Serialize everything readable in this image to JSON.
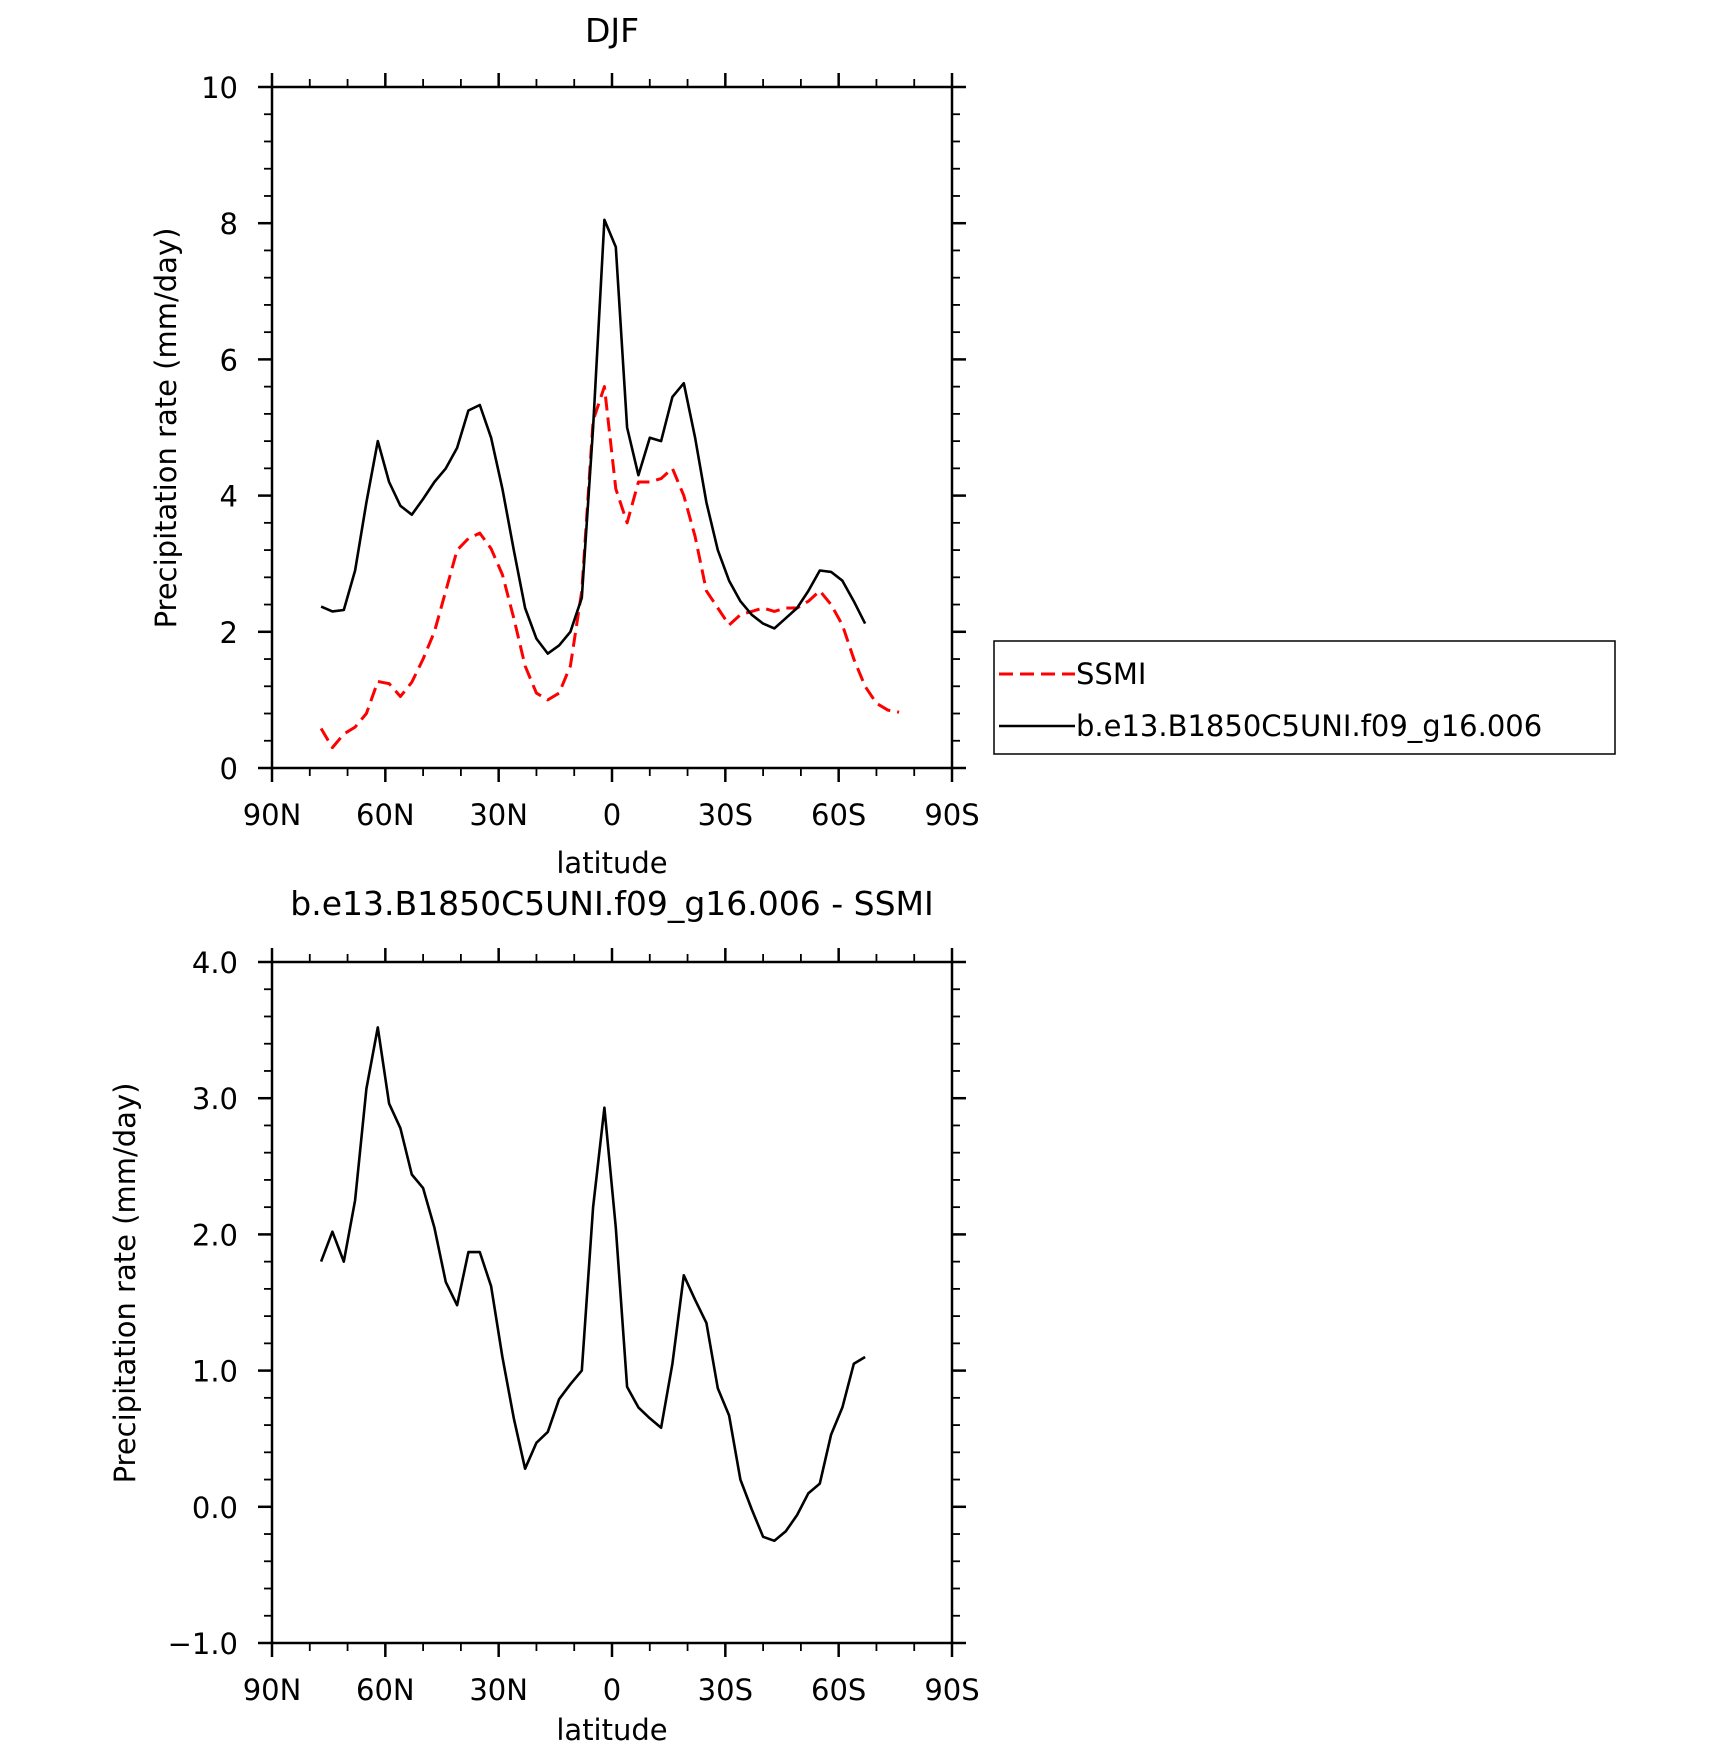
{
  "chart_data": [
    {
      "type": "line",
      "title": "DJF",
      "xlabel": "latitude",
      "ylabel": "Precipitation rate (mm/day)",
      "xlim": [
        90,
        -90
      ],
      "ylim": [
        0,
        10
      ],
      "x_ticks": [
        90,
        60,
        30,
        0,
        -30,
        -60,
        -90
      ],
      "x_tick_labels": [
        "90N",
        "60N",
        "30N",
        "0",
        "30S",
        "60S",
        "90S"
      ],
      "y_ticks": [
        0,
        2,
        4,
        6,
        8,
        10
      ],
      "y_tick_labels": [
        "0",
        "2",
        "4",
        "6",
        "8",
        "10"
      ],
      "grid": false,
      "legend_position": "right",
      "series": [
        {
          "name": "SSMI",
          "color": "#ff0000",
          "dash": "dashed",
          "x": [
            77,
            74,
            71,
            68,
            65,
            62,
            59,
            56,
            53,
            50,
            47,
            44,
            41,
            38,
            35,
            32,
            29,
            26,
            23,
            20,
            17,
            14,
            11,
            8,
            5,
            2,
            -1,
            -4,
            -7,
            -10,
            -13,
            -16,
            -19,
            -22,
            -25,
            -28,
            -31,
            -34,
            -37,
            -40,
            -43,
            -46,
            -49,
            -52,
            -55,
            -58,
            -61,
            -64,
            -67,
            -70,
            -73,
            -76
          ],
          "y": [
            0.58,
            0.3,
            0.5,
            0.6,
            0.8,
            1.27,
            1.24,
            1.05,
            1.26,
            1.6,
            2.0,
            2.6,
            3.2,
            3.37,
            3.45,
            3.22,
            2.84,
            2.2,
            1.5,
            1.1,
            1.0,
            1.1,
            1.5,
            2.6,
            5.1,
            5.6,
            4.1,
            3.6,
            4.2,
            4.2,
            4.25,
            4.4,
            4.0,
            3.4,
            2.6,
            2.35,
            2.1,
            2.25,
            2.3,
            2.35,
            2.3,
            2.35,
            2.35,
            2.45,
            2.6,
            2.4,
            2.1,
            1.6,
            1.2,
            0.95,
            0.85,
            0.82
          ]
        },
        {
          "name": "b.e13.B1850C5UNI.f09_g16.006",
          "color": "#000000",
          "dash": "solid",
          "x": [
            77,
            74,
            71,
            68,
            65,
            62,
            59,
            56,
            53,
            50,
            47,
            44,
            41,
            38,
            35,
            32,
            29,
            26,
            23,
            20,
            17,
            14,
            11,
            8,
            5,
            2,
            -1,
            -4,
            -7,
            -10,
            -13,
            -16,
            -19,
            -22,
            -25,
            -28,
            -31,
            -34,
            -37,
            -40,
            -43,
            -46,
            -49,
            -52,
            -55,
            -58,
            -61,
            -64,
            -67
          ],
          "y": [
            2.37,
            2.3,
            2.32,
            2.9,
            3.9,
            4.8,
            4.2,
            3.85,
            3.72,
            3.95,
            4.2,
            4.4,
            4.7,
            5.25,
            5.33,
            4.85,
            4.1,
            3.2,
            2.35,
            1.9,
            1.68,
            1.8,
            2.0,
            2.5,
            5.0,
            8.05,
            7.65,
            5.0,
            4.3,
            4.85,
            4.8,
            5.45,
            5.65,
            4.85,
            3.9,
            3.2,
            2.75,
            2.45,
            2.25,
            2.12,
            2.05,
            2.2,
            2.35,
            2.6,
            2.9,
            2.88,
            2.75,
            2.45,
            2.12
          ]
        }
      ]
    },
    {
      "type": "line",
      "title": "b.e13.B1850C5UNI.f09_g16.006 - SSMI",
      "xlabel": "latitude",
      "ylabel": "Precipitation rate (mm/day)",
      "xlim": [
        90,
        -90
      ],
      "ylim": [
        -1.0,
        4.0
      ],
      "x_ticks": [
        90,
        60,
        30,
        0,
        -30,
        -60,
        -90
      ],
      "x_tick_labels": [
        "90N",
        "60N",
        "30N",
        "0",
        "30S",
        "60S",
        "90S"
      ],
      "y_ticks": [
        -1.0,
        0.0,
        1.0,
        2.0,
        3.0,
        4.0
      ],
      "y_tick_labels": [
        "−1.0",
        "0.0",
        "1.0",
        "2.0",
        "3.0",
        "4.0"
      ],
      "grid": false,
      "series": [
        {
          "color": "#000000",
          "dash": "solid",
          "x": [
            77,
            74,
            71,
            68,
            65,
            62,
            59,
            56,
            53,
            50,
            47,
            44,
            41,
            38,
            35,
            32,
            29,
            26,
            23,
            20,
            17,
            14,
            11,
            8,
            5,
            2,
            -1,
            -4,
            -7,
            -10,
            -13,
            -16,
            -19,
            -22,
            -25,
            -28,
            -31,
            -34,
            -37,
            -40,
            -43,
            -46,
            -49,
            -52,
            -55,
            -58,
            -61,
            -64,
            -67
          ],
          "y": [
            1.8,
            2.02,
            1.8,
            2.25,
            3.07,
            3.52,
            2.96,
            2.78,
            2.44,
            2.34,
            2.05,
            1.65,
            1.48,
            1.87,
            1.87,
            1.62,
            1.1,
            0.65,
            0.28,
            0.47,
            0.55,
            0.79,
            0.9,
            1.0,
            2.2,
            2.93,
            2.05,
            0.88,
            0.73,
            0.65,
            0.58,
            1.05,
            1.7,
            1.52,
            1.35,
            0.87,
            0.67,
            0.2,
            -0.02,
            -0.22,
            -0.25,
            -0.18,
            -0.06,
            0.1,
            0.17,
            0.53,
            0.73,
            1.05,
            1.1
          ]
        }
      ]
    }
  ]
}
